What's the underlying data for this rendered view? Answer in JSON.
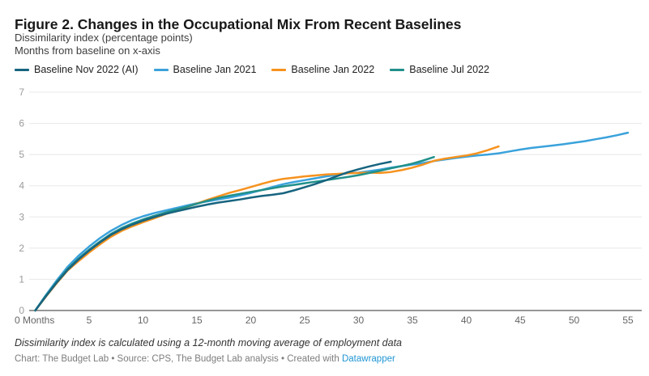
{
  "header": {
    "title": "Figure 2. Changes in the Occupational Mix From Recent Baselines",
    "subtitle_line1": "Dissimilarity index (percentage points)",
    "subtitle_line2": "Months from baseline on x-axis"
  },
  "legend": [
    {
      "label": "Baseline Nov 2022 (AI)",
      "color": "#17647f"
    },
    {
      "label": "Baseline Jan 2021",
      "color": "#3aa2db"
    },
    {
      "label": "Baseline Jan 2022",
      "color": "#f6921e"
    },
    {
      "label": "Baseline Jul 2022",
      "color": "#21908b"
    }
  ],
  "chart_data": {
    "type": "line",
    "title": "Figure 2. Changes in the Occupational Mix From Recent Baselines",
    "ylabel": "Dissimilarity index (percentage points)",
    "xlabel": "Months from baseline",
    "ylim": [
      0,
      7
    ],
    "xlim": [
      0,
      55
    ],
    "grid": "horizontal",
    "legend_position": "top",
    "y_ticks": [
      0,
      1,
      2,
      3,
      4,
      5,
      6,
      7
    ],
    "x_ticks": [
      0,
      5,
      10,
      15,
      20,
      25,
      30,
      35,
      40,
      45,
      50,
      55
    ],
    "x_tick_labels": [
      "0 Months",
      "5",
      "10",
      "15",
      "20",
      "25",
      "30",
      "35",
      "40",
      "45",
      "50",
      "55"
    ],
    "draw_order": [
      1,
      2,
      3,
      0
    ],
    "series": [
      {
        "name": "Baseline Nov 2022 (AI)",
        "color": "#17647f",
        "x_start": 0,
        "values": [
          0,
          0.46,
          0.9,
          1.3,
          1.63,
          1.92,
          2.18,
          2.42,
          2.6,
          2.75,
          2.88,
          2.99,
          3.09,
          3.17,
          3.25,
          3.33,
          3.4,
          3.46,
          3.51,
          3.56,
          3.62,
          3.67,
          3.71,
          3.76,
          3.85,
          3.95,
          4.06,
          4.18,
          4.31,
          4.43,
          4.53,
          4.62,
          4.7,
          4.77
        ]
      },
      {
        "name": "Baseline Jan 2021",
        "color": "#3aa2db",
        "x_start": 0,
        "values": [
          0,
          0.5,
          0.97,
          1.4,
          1.75,
          2.05,
          2.32,
          2.55,
          2.74,
          2.9,
          3.02,
          3.12,
          3.2,
          3.28,
          3.36,
          3.44,
          3.5,
          3.56,
          3.62,
          3.69,
          3.77,
          3.86,
          3.96,
          4.05,
          4.12,
          4.18,
          4.24,
          4.3,
          4.35,
          4.4,
          4.42,
          4.47,
          4.52,
          4.58,
          4.63,
          4.68,
          4.73,
          4.79,
          4.84,
          4.89,
          4.93,
          4.97,
          5.0,
          5.04,
          5.1,
          5.16,
          5.21,
          5.25,
          5.29,
          5.33,
          5.38,
          5.43,
          5.49,
          5.55,
          5.62,
          5.7
        ]
      },
      {
        "name": "Baseline Jan 2022",
        "color": "#f6921e",
        "x_start": 0,
        "values": [
          0,
          0.45,
          0.88,
          1.28,
          1.58,
          1.86,
          2.12,
          2.36,
          2.55,
          2.7,
          2.83,
          2.95,
          3.08,
          3.2,
          3.31,
          3.43,
          3.55,
          3.66,
          3.77,
          3.86,
          3.96,
          4.06,
          4.15,
          4.22,
          4.26,
          4.3,
          4.33,
          4.36,
          4.38,
          4.4,
          4.41,
          4.42,
          4.41,
          4.44,
          4.5,
          4.58,
          4.68,
          4.8,
          4.87,
          4.92,
          4.97,
          5.04,
          5.14,
          5.26
        ]
      },
      {
        "name": "Baseline Jul 2022",
        "color": "#21908b",
        "x_start": 0,
        "values": [
          0,
          0.48,
          0.92,
          1.33,
          1.66,
          1.95,
          2.21,
          2.45,
          2.64,
          2.79,
          2.92,
          3.03,
          3.13,
          3.23,
          3.32,
          3.42,
          3.52,
          3.61,
          3.68,
          3.74,
          3.8,
          3.86,
          3.92,
          3.98,
          4.03,
          4.08,
          4.13,
          4.18,
          4.23,
          4.28,
          4.34,
          4.41,
          4.48,
          4.56,
          4.63,
          4.71,
          4.81,
          4.92
        ]
      }
    ]
  },
  "footer": {
    "note": "Dissimilarity index is calculated using a 12-month moving average of employment data",
    "credit_prefix": "Chart: The Budget Lab • Source: CPS, The Budget Lab analysis • Created with ",
    "credit_link": "Datawrapper"
  },
  "colors": {
    "gridline": "#e8e8e8",
    "axis_line": "#2f2f2f",
    "y_tick_label": "#9b9b9b",
    "x_tick_label": "#666666",
    "link": "#2196d3"
  }
}
